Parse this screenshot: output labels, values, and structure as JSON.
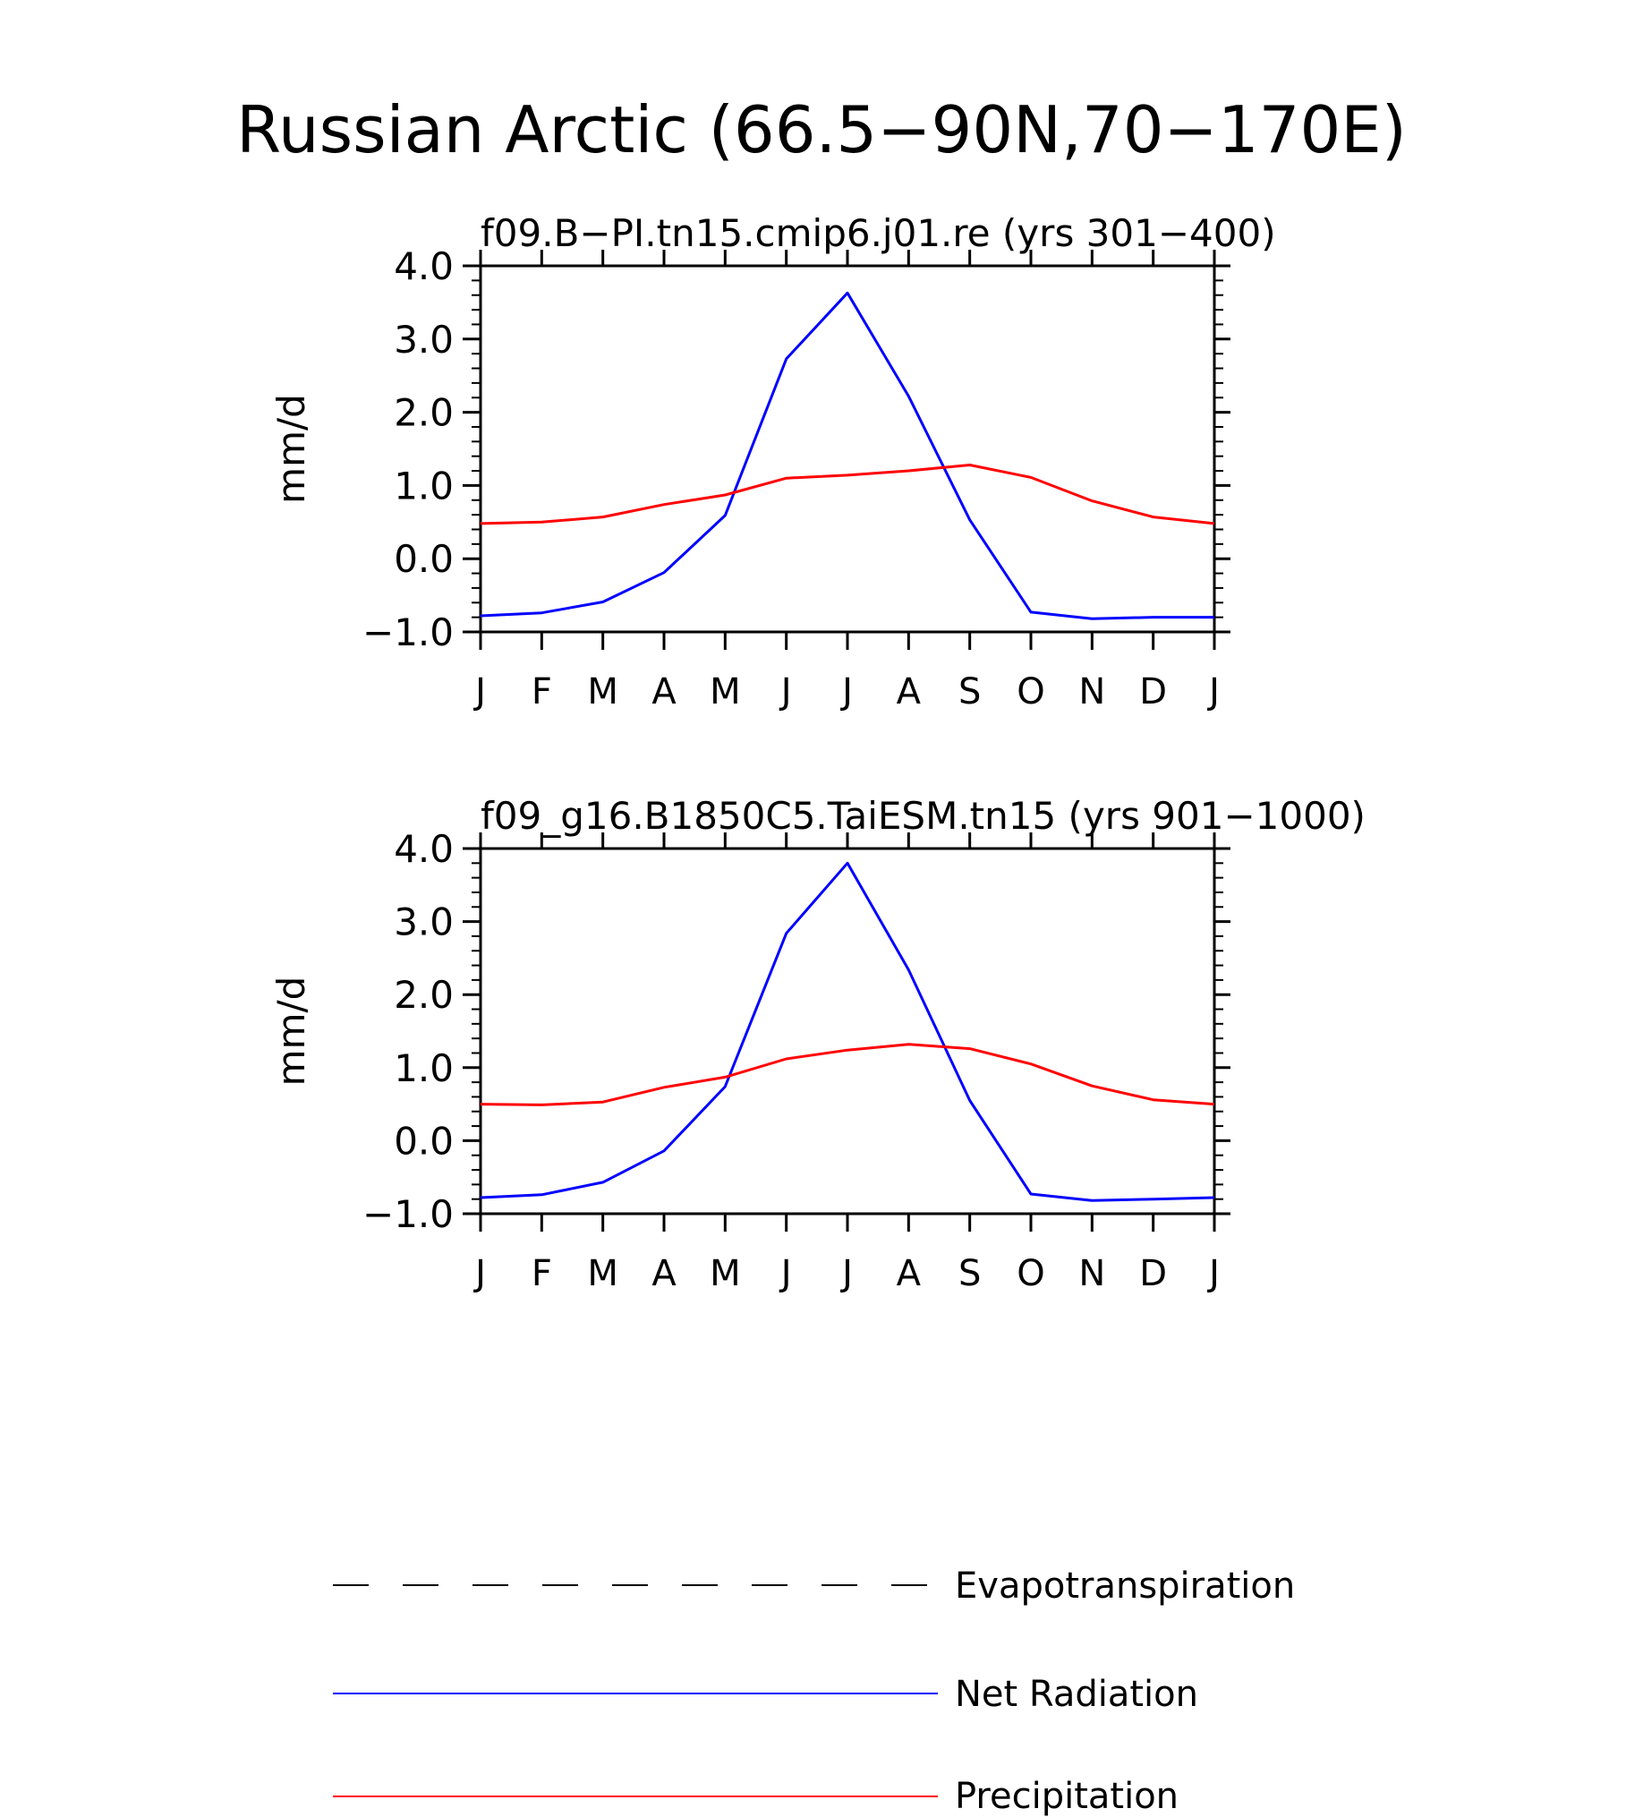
{
  "title": "Russian Arctic (66.5−90N,70−170E)",
  "chart_data": [
    {
      "type": "line",
      "title": "f09.B−PI.tn15.cmip6.j01.re (yrs 301−400)",
      "xlabel": "",
      "ylabel": "mm/d",
      "ylim": [
        -1.0,
        4.0
      ],
      "yticks": [
        "−1.0",
        "0.0",
        "1.0",
        "2.0",
        "3.0",
        "4.0"
      ],
      "ytick_values": [
        -1.0,
        0.0,
        1.0,
        2.0,
        3.0,
        4.0
      ],
      "x_tick_labels": [
        "J",
        "F",
        "M",
        "A",
        "M",
        "J",
        "J",
        "A",
        "S",
        "O",
        "N",
        "D",
        "J"
      ],
      "series": [
        {
          "name": "Net Radiation",
          "color": "#0000ff",
          "values": [
            -0.78,
            -0.74,
            -0.59,
            -0.19,
            0.59,
            2.73,
            3.63,
            2.22,
            0.53,
            -0.73,
            -0.82,
            -0.8,
            -0.8
          ]
        },
        {
          "name": "Precipitation",
          "color": "#ff0000",
          "values": [
            0.48,
            0.5,
            0.57,
            0.74,
            0.87,
            1.1,
            1.14,
            1.2,
            1.28,
            1.11,
            0.79,
            0.57,
            0.48
          ]
        }
      ]
    },
    {
      "type": "line",
      "title": "f09_g16.B1850C5.TaiESM.tn15 (yrs 901−1000)",
      "xlabel": "",
      "ylabel": "mm/d",
      "ylim": [
        -1.0,
        4.0
      ],
      "yticks": [
        "−1.0",
        "0.0",
        "1.0",
        "2.0",
        "3.0",
        "4.0"
      ],
      "ytick_values": [
        -1.0,
        0.0,
        1.0,
        2.0,
        3.0,
        4.0
      ],
      "x_tick_labels": [
        "J",
        "F",
        "M",
        "A",
        "M",
        "J",
        "J",
        "A",
        "S",
        "O",
        "N",
        "D",
        "J"
      ],
      "series": [
        {
          "name": "Net Radiation",
          "color": "#0000ff",
          "values": [
            -0.78,
            -0.74,
            -0.57,
            -0.14,
            0.74,
            2.84,
            3.8,
            2.34,
            0.55,
            -0.73,
            -0.82,
            -0.8,
            -0.78
          ]
        },
        {
          "name": "Precipitation",
          "color": "#ff0000",
          "values": [
            0.5,
            0.49,
            0.53,
            0.73,
            0.87,
            1.12,
            1.24,
            1.32,
            1.26,
            1.05,
            0.75,
            0.56,
            0.5
          ]
        }
      ]
    }
  ],
  "legend": [
    {
      "label": "Evapotranspiration",
      "color": "#000000",
      "style": "dashed"
    },
    {
      "label": "Net Radiation",
      "color": "#0000ff",
      "style": "solid"
    },
    {
      "label": "Precipitation",
      "color": "#ff0000",
      "style": "solid"
    }
  ]
}
